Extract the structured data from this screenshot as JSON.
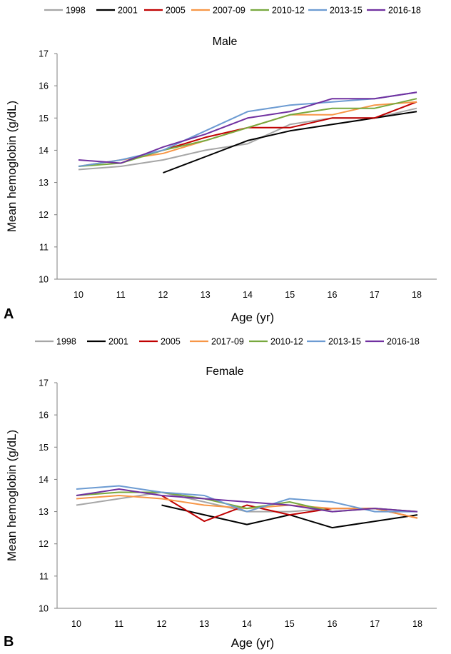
{
  "chart_data": [
    {
      "type": "line",
      "panel_label": "A",
      "title": "Male",
      "xlabel": "Age (yr)",
      "ylabel": "Mean hemoglobin (g/dL)",
      "ylim": [
        10,
        17
      ],
      "yticks": [
        "10",
        "11",
        "12",
        "13",
        "14",
        "15",
        "16",
        "17"
      ],
      "categories": [
        "10",
        "11",
        "12",
        "13",
        "14",
        "15",
        "16",
        "17",
        "18"
      ],
      "legend": [
        "1998",
        "2001",
        "2005",
        "2007-09",
        "2010-12",
        "2013-15",
        "2016-18"
      ],
      "series": [
        {
          "name": "1998",
          "color": "#a6a6a6",
          "values": [
            13.4,
            13.5,
            13.7,
            14.0,
            14.2,
            14.8,
            15.0,
            15.0,
            15.3
          ]
        },
        {
          "name": "2001",
          "color": "#000000",
          "values": [
            null,
            null,
            13.3,
            13.8,
            14.3,
            14.6,
            14.8,
            15.0,
            15.2
          ]
        },
        {
          "name": "2005",
          "color": "#c00000",
          "values": [
            null,
            null,
            14.0,
            14.4,
            14.7,
            14.7,
            15.0,
            15.0,
            15.5
          ]
        },
        {
          "name": "2007-09",
          "color": "#f79646",
          "values": [
            13.5,
            13.7,
            13.9,
            14.3,
            14.7,
            15.1,
            15.1,
            15.4,
            15.5
          ]
        },
        {
          "name": "2010-12",
          "color": "#77a83e",
          "values": [
            13.5,
            13.6,
            14.0,
            14.3,
            14.7,
            15.1,
            15.3,
            15.3,
            15.6
          ]
        },
        {
          "name": "2013-15",
          "color": "#6c9bd2",
          "values": [
            13.5,
            13.7,
            14.0,
            14.6,
            15.2,
            15.4,
            15.5,
            15.6,
            15.8
          ]
        },
        {
          "name": "2016-18",
          "color": "#7030a0",
          "values": [
            13.7,
            13.6,
            14.1,
            14.5,
            15.0,
            15.2,
            15.6,
            15.6,
            15.8
          ]
        }
      ]
    },
    {
      "type": "line",
      "panel_label": "B",
      "title": "Female",
      "xlabel": "Age (yr)",
      "ylabel": "Mean hemoglobin (g/dL)",
      "ylim": [
        10,
        17
      ],
      "yticks": [
        "10",
        "11",
        "12",
        "13",
        "14",
        "15",
        "16",
        "17"
      ],
      "categories": [
        "10",
        "11",
        "12",
        "13",
        "14",
        "15",
        "16",
        "17",
        "18"
      ],
      "legend": [
        "1998",
        "2001",
        "2005",
        "2017-09",
        "2010-12",
        "2013-15",
        "2016-18"
      ],
      "series": [
        {
          "name": "1998",
          "color": "#a6a6a6",
          "values": [
            13.2,
            13.4,
            13.6,
            13.3,
            13.0,
            13.0,
            13.1,
            13.1,
            13.0
          ]
        },
        {
          "name": "2001",
          "color": "#000000",
          "values": [
            null,
            null,
            13.2,
            12.9,
            12.6,
            12.9,
            12.5,
            12.7,
            12.9
          ]
        },
        {
          "name": "2005",
          "color": "#c00000",
          "values": [
            null,
            null,
            13.5,
            12.7,
            13.2,
            12.9,
            13.1,
            13.1,
            12.8
          ]
        },
        {
          "name": "2017-09",
          "color": "#f79646",
          "values": [
            13.4,
            13.5,
            13.4,
            13.2,
            13.1,
            13.2,
            13.1,
            13.1,
            12.8
          ]
        },
        {
          "name": "2010-12",
          "color": "#77a83e",
          "values": [
            13.5,
            13.6,
            13.6,
            13.4,
            13.1,
            13.3,
            13.0,
            13.1,
            13.0
          ]
        },
        {
          "name": "2013-15",
          "color": "#6c9bd2",
          "values": [
            13.7,
            13.8,
            13.6,
            13.5,
            13.0,
            13.4,
            13.3,
            13.0,
            13.0
          ]
        },
        {
          "name": "2016-18",
          "color": "#7030a0",
          "values": [
            13.5,
            13.7,
            13.5,
            13.4,
            13.3,
            13.2,
            13.0,
            13.1,
            13.0
          ]
        }
      ]
    }
  ]
}
